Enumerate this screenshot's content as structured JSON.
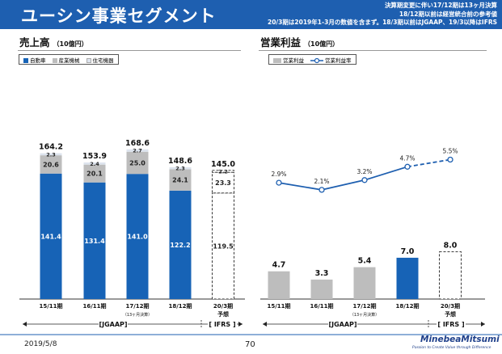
{
  "header": {
    "title": "ユーシン事業セグメント",
    "note1": "決算期変更に伴い17/12期は13ヶ月決算",
    "note2": "18/12期以前は経営統合前の参考値",
    "note3": "20/3期は2019年1-3月の数値を含まず。18/3期以前はJGAAP、19/3以降はIFRS"
  },
  "left": {
    "title": "売上高",
    "unit": "（10億円）",
    "legend": {
      "auto": "自動車",
      "industrial": "産業機械",
      "housing": "住宅機器"
    }
  },
  "right": {
    "title": "営業利益",
    "unit": "（10億円）",
    "legend": {
      "profit": "営業利益",
      "margin": "営業利益率"
    }
  },
  "axis_notes": {
    "jgaap": "[JGAAP]",
    "ifrs": "[ IFRS ]"
  },
  "footer": {
    "date": "2019/5/8",
    "page": "70",
    "logo": "MinebeaMitsumi",
    "tagline": "Passion to Create Value through Difference"
  },
  "colors": {
    "auto": "#1763b6",
    "industrial": "#bdbdbd",
    "housing": "#dde4ee",
    "profit": "#bdbdbd",
    "profit_last": "#1763b6",
    "line": "#1e5fb0"
  },
  "chart_data": [
    {
      "type": "bar",
      "stacked": true,
      "title": "売上高（10億円）",
      "categories": [
        "15/11期",
        "16/11期",
        "17/12期",
        "18/12期",
        "20/3期"
      ],
      "category_subs": [
        "",
        "",
        "（13ヶ月決算）",
        "",
        "予想"
      ],
      "series": [
        {
          "name": "自動車",
          "values": [
            141.4,
            131.4,
            141.0,
            122.2,
            119.5
          ]
        },
        {
          "name": "産業機械",
          "values": [
            20.6,
            20.1,
            25.0,
            24.1,
            23.3
          ]
        },
        {
          "name": "住宅機器",
          "values": [
            2.3,
            2.4,
            2.7,
            2.3,
            2.2
          ]
        }
      ],
      "totals": [
        164.2,
        153.9,
        168.6,
        148.6,
        145.0
      ],
      "forecast_last": true
    },
    {
      "type": "bar+line",
      "title": "営業利益（10億円）",
      "categories": [
        "15/11期",
        "16/11期",
        "17/12期",
        "18/12期",
        "20/3期"
      ],
      "category_subs": [
        "",
        "",
        "（13ヶ月決算）",
        "",
        "予想"
      ],
      "series": [
        {
          "name": "営業利益",
          "type": "bar",
          "values": [
            4.7,
            3.3,
            5.4,
            7.0,
            8.0
          ]
        },
        {
          "name": "営業利益率",
          "type": "line",
          "unit": "%",
          "values": [
            2.9,
            2.1,
            3.2,
            4.7,
            5.5
          ]
        }
      ],
      "forecast_last": true
    }
  ]
}
